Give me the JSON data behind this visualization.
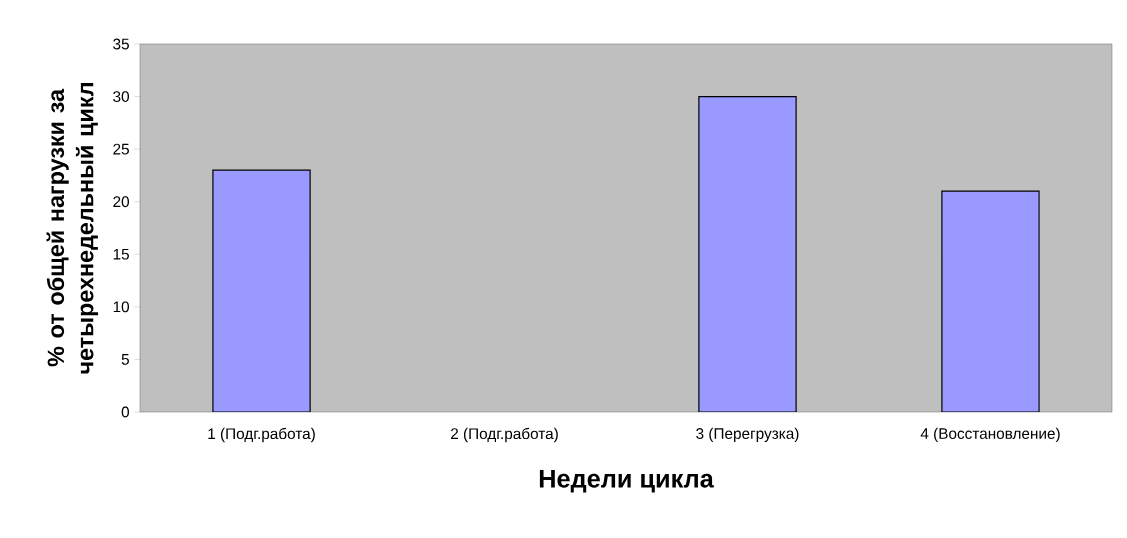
{
  "chart_data": {
    "type": "bar",
    "xlabel": "Недели цикла",
    "ylabel": "% от общей нагрузки за четырехнедельный цикл",
    "categories": [
      "1 (Подг.работа)",
      "2 (Подг.работа)",
      "3 (Перегрузка)",
      "4 (Восстановление)"
    ],
    "values": [
      23,
      null,
      30,
      21
    ],
    "color": "#9999ff",
    "ylim": [
      0,
      35
    ],
    "yticks": [
      0,
      5,
      10,
      15,
      20,
      25,
      30,
      35
    ]
  }
}
